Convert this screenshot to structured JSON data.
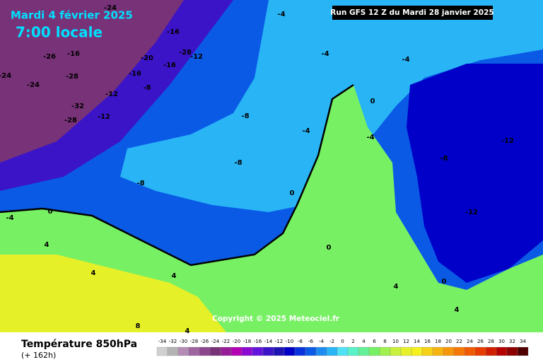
{
  "header": {
    "date": "Mardi 4 février 2025",
    "time": "7:00 locale",
    "run": "Run GFS 12 Z du Mardi 28 janvier 2025",
    "copyright": "Copyright © 2025 Meteociel.fr"
  },
  "footer": {
    "title": "Température 850hPa",
    "lead": "(+ 162h)"
  },
  "scale": {
    "ticks": [
      -34,
      -32,
      -30,
      -28,
      -26,
      -24,
      -22,
      -20,
      -18,
      -16,
      -14,
      -12,
      -10,
      -8,
      -6,
      -4,
      -2,
      0,
      2,
      4,
      6,
      8,
      10,
      12,
      14,
      16,
      18,
      20,
      22,
      24,
      26,
      28,
      30,
      32,
      34
    ],
    "colors": [
      "#d0d0d0",
      "#b4b4b4",
      "#b48cb4",
      "#a064a0",
      "#8c468c",
      "#783278",
      "#961e96",
      "#b400b4",
      "#8c0ad2",
      "#6414dc",
      "#3c14c8",
      "#1e14b4",
      "#0000c8",
      "#0a32dc",
      "#0a5ae6",
      "#1e8cf0",
      "#28b4f5",
      "#50e1f5",
      "#5af0c8",
      "#64f096",
      "#78f064",
      "#a0f050",
      "#c8f03c",
      "#e6f028",
      "#f5f01e",
      "#f5d214",
      "#f5b40f",
      "#f5960a",
      "#f57805",
      "#f05a00",
      "#e63c00",
      "#d21e00",
      "#b40000",
      "#8c0000",
      "#500000"
    ]
  },
  "map_labels": [
    -24,
    -4,
    -16,
    -16,
    -20,
    -26,
    -28,
    -12,
    -16,
    -16,
    -24,
    -24,
    -28,
    -8,
    -12,
    -32,
    -28,
    -12,
    -8,
    -4,
    -4,
    0,
    -4,
    -4,
    -8,
    -8,
    -8,
    -12,
    -12,
    0,
    -4,
    0,
    4,
    4,
    4,
    8,
    4,
    0,
    4,
    4,
    0
  ]
}
